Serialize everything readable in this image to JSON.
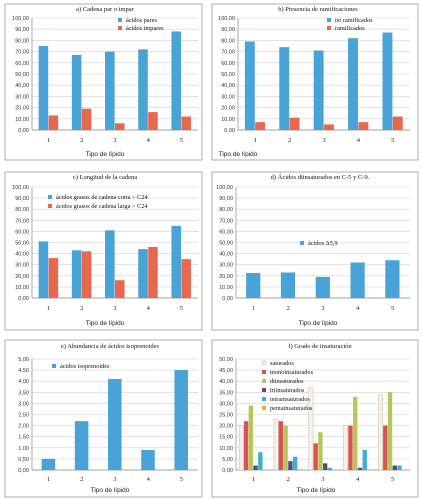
{
  "chart_data": [
    {
      "type": "bar",
      "title": "a) Cadena par o impar",
      "xlabel": "Tipo de lípido",
      "ylabel": "",
      "ylim": [
        0,
        100
      ],
      "yticks": [
        "0,00",
        "10,00",
        "20,00",
        "30,00",
        "40,00",
        "50,00",
        "60,00",
        "70,00",
        "80,00",
        "90,00",
        "100,00"
      ],
      "categories": [
        "1",
        "2",
        "3",
        "4",
        "5"
      ],
      "series": [
        {
          "name": "ácidos pares",
          "color": "#4aa3d6",
          "values": [
            75,
            67,
            70,
            72,
            88
          ]
        },
        {
          "name": "ácidos impares",
          "color": "#e8684e",
          "values": [
            13,
            19,
            6,
            16,
            12
          ]
        }
      ],
      "legend": "top-right"
    },
    {
      "type": "bar",
      "title": "b) Presencia de ramificaciones",
      "xlabel": "Tipo de lípido",
      "ylabel": "",
      "ylim": [
        0,
        100
      ],
      "yticks": [
        "0,00",
        "10,00",
        "20,00",
        "30,00",
        "40,00",
        "50,00",
        "60,00",
        "70,00",
        "80,00",
        "90,00",
        "100,00"
      ],
      "categories": [
        "1",
        "2",
        "3",
        "4",
        "5"
      ],
      "series": [
        {
          "name": "no ramificados",
          "color": "#4aa3d6",
          "values": [
            79,
            74,
            71,
            82,
            87
          ]
        },
        {
          "name": "ramificados",
          "color": "#e8684e",
          "values": [
            7,
            11,
            5,
            7,
            12
          ]
        }
      ],
      "legend": "top-right"
    },
    {
      "type": "bar",
      "title": "c) Longitud de la cadena",
      "xlabel": "Tipo de lípido",
      "ylabel": "",
      "ylim": [
        0,
        100
      ],
      "yticks": [
        "0,00",
        "10,00",
        "20,00",
        "30,00",
        "40,00",
        "50,00",
        "60,00",
        "70,00",
        "80,00",
        "90,00",
        "100,00"
      ],
      "categories": [
        "1",
        "2",
        "3",
        "4",
        "5"
      ],
      "series": [
        {
          "name": "ácidos grasos de cadena corta < C24",
          "color": "#4aa3d6",
          "values": [
            51,
            43,
            61,
            44,
            65
          ]
        },
        {
          "name": "ácidos grasos de cadena larga > C24",
          "color": "#e8684e",
          "values": [
            36,
            42,
            16,
            46,
            35
          ]
        }
      ],
      "legend": "top-center"
    },
    {
      "type": "bar",
      "title": "d) Ácidos diinsaturados en C-5 y C-9.",
      "xlabel": "Tipo de lípido",
      "ylabel": "",
      "ylim": [
        0,
        100
      ],
      "yticks": [
        "0,00",
        "10,00",
        "20,00",
        "30,00",
        "40,00",
        "50,00",
        "60,00",
        "70,00",
        "80,00",
        "90,00",
        "100,00"
      ],
      "categories": [
        "1",
        "2",
        "3",
        "4",
        "5"
      ],
      "series": [
        {
          "name": "ácidos Δ5,9",
          "color": "#4aa3d6",
          "values": [
            22.5,
            23,
            19,
            32,
            34
          ]
        }
      ],
      "legend": "center"
    },
    {
      "type": "bar",
      "title": "e) Abundancia de ácidos isoprenoides",
      "xlabel": "Tipo de lípido",
      "ylabel": "",
      "ylim": [
        0,
        5
      ],
      "yticks": [
        "0,00",
        "0,50",
        "1,00",
        "1,50",
        "2,00",
        "2,50",
        "3,00",
        "3,50",
        "4,00",
        "4,50",
        "5,00"
      ],
      "categories": [
        "1",
        "2",
        "3",
        "4",
        "5"
      ],
      "series": [
        {
          "name": "ácidos isoprenoides",
          "color": "#4aa3d6",
          "values": [
            0.5,
            2.2,
            4.1,
            0.9,
            4.5
          ]
        }
      ],
      "legend": "top-left"
    },
    {
      "type": "bar",
      "title": "f) Grado de insaturación",
      "xlabel": "Tipo de lípido",
      "ylabel": "",
      "ylim": [
        0,
        50
      ],
      "yticks": [
        "0,00",
        "5,00",
        "10,00",
        "15,00",
        "20,00",
        "25,00",
        "30,00",
        "35,00",
        "40,00",
        "45,00",
        "50,00"
      ],
      "categories": [
        "1",
        "2",
        "3",
        "4",
        "5"
      ],
      "series": [
        {
          "name": "saturados",
          "color": "#f4f1ec",
          "values": [
            20,
            23,
            37,
            20,
            34
          ]
        },
        {
          "name": "monoinsaturados",
          "color": "#d9534f",
          "values": [
            22,
            22,
            12,
            20,
            20
          ]
        },
        {
          "name": "diinsaturados",
          "color": "#b7c65a",
          "values": [
            29,
            20,
            17,
            33,
            35
          ]
        },
        {
          "name": "triinsaturados",
          "color": "#5a4a7a",
          "values": [
            2,
            4,
            3,
            1,
            2
          ]
        },
        {
          "name": "tetrainsaturados",
          "color": "#3fb0c9",
          "values": [
            8,
            6,
            1,
            9,
            2
          ]
        },
        {
          "name": "pentainsaturados",
          "color": "#f0a844",
          "values": [
            0.3,
            0.3,
            0.3,
            0.3,
            0.3
          ]
        }
      ],
      "legend": "top-left"
    }
  ]
}
